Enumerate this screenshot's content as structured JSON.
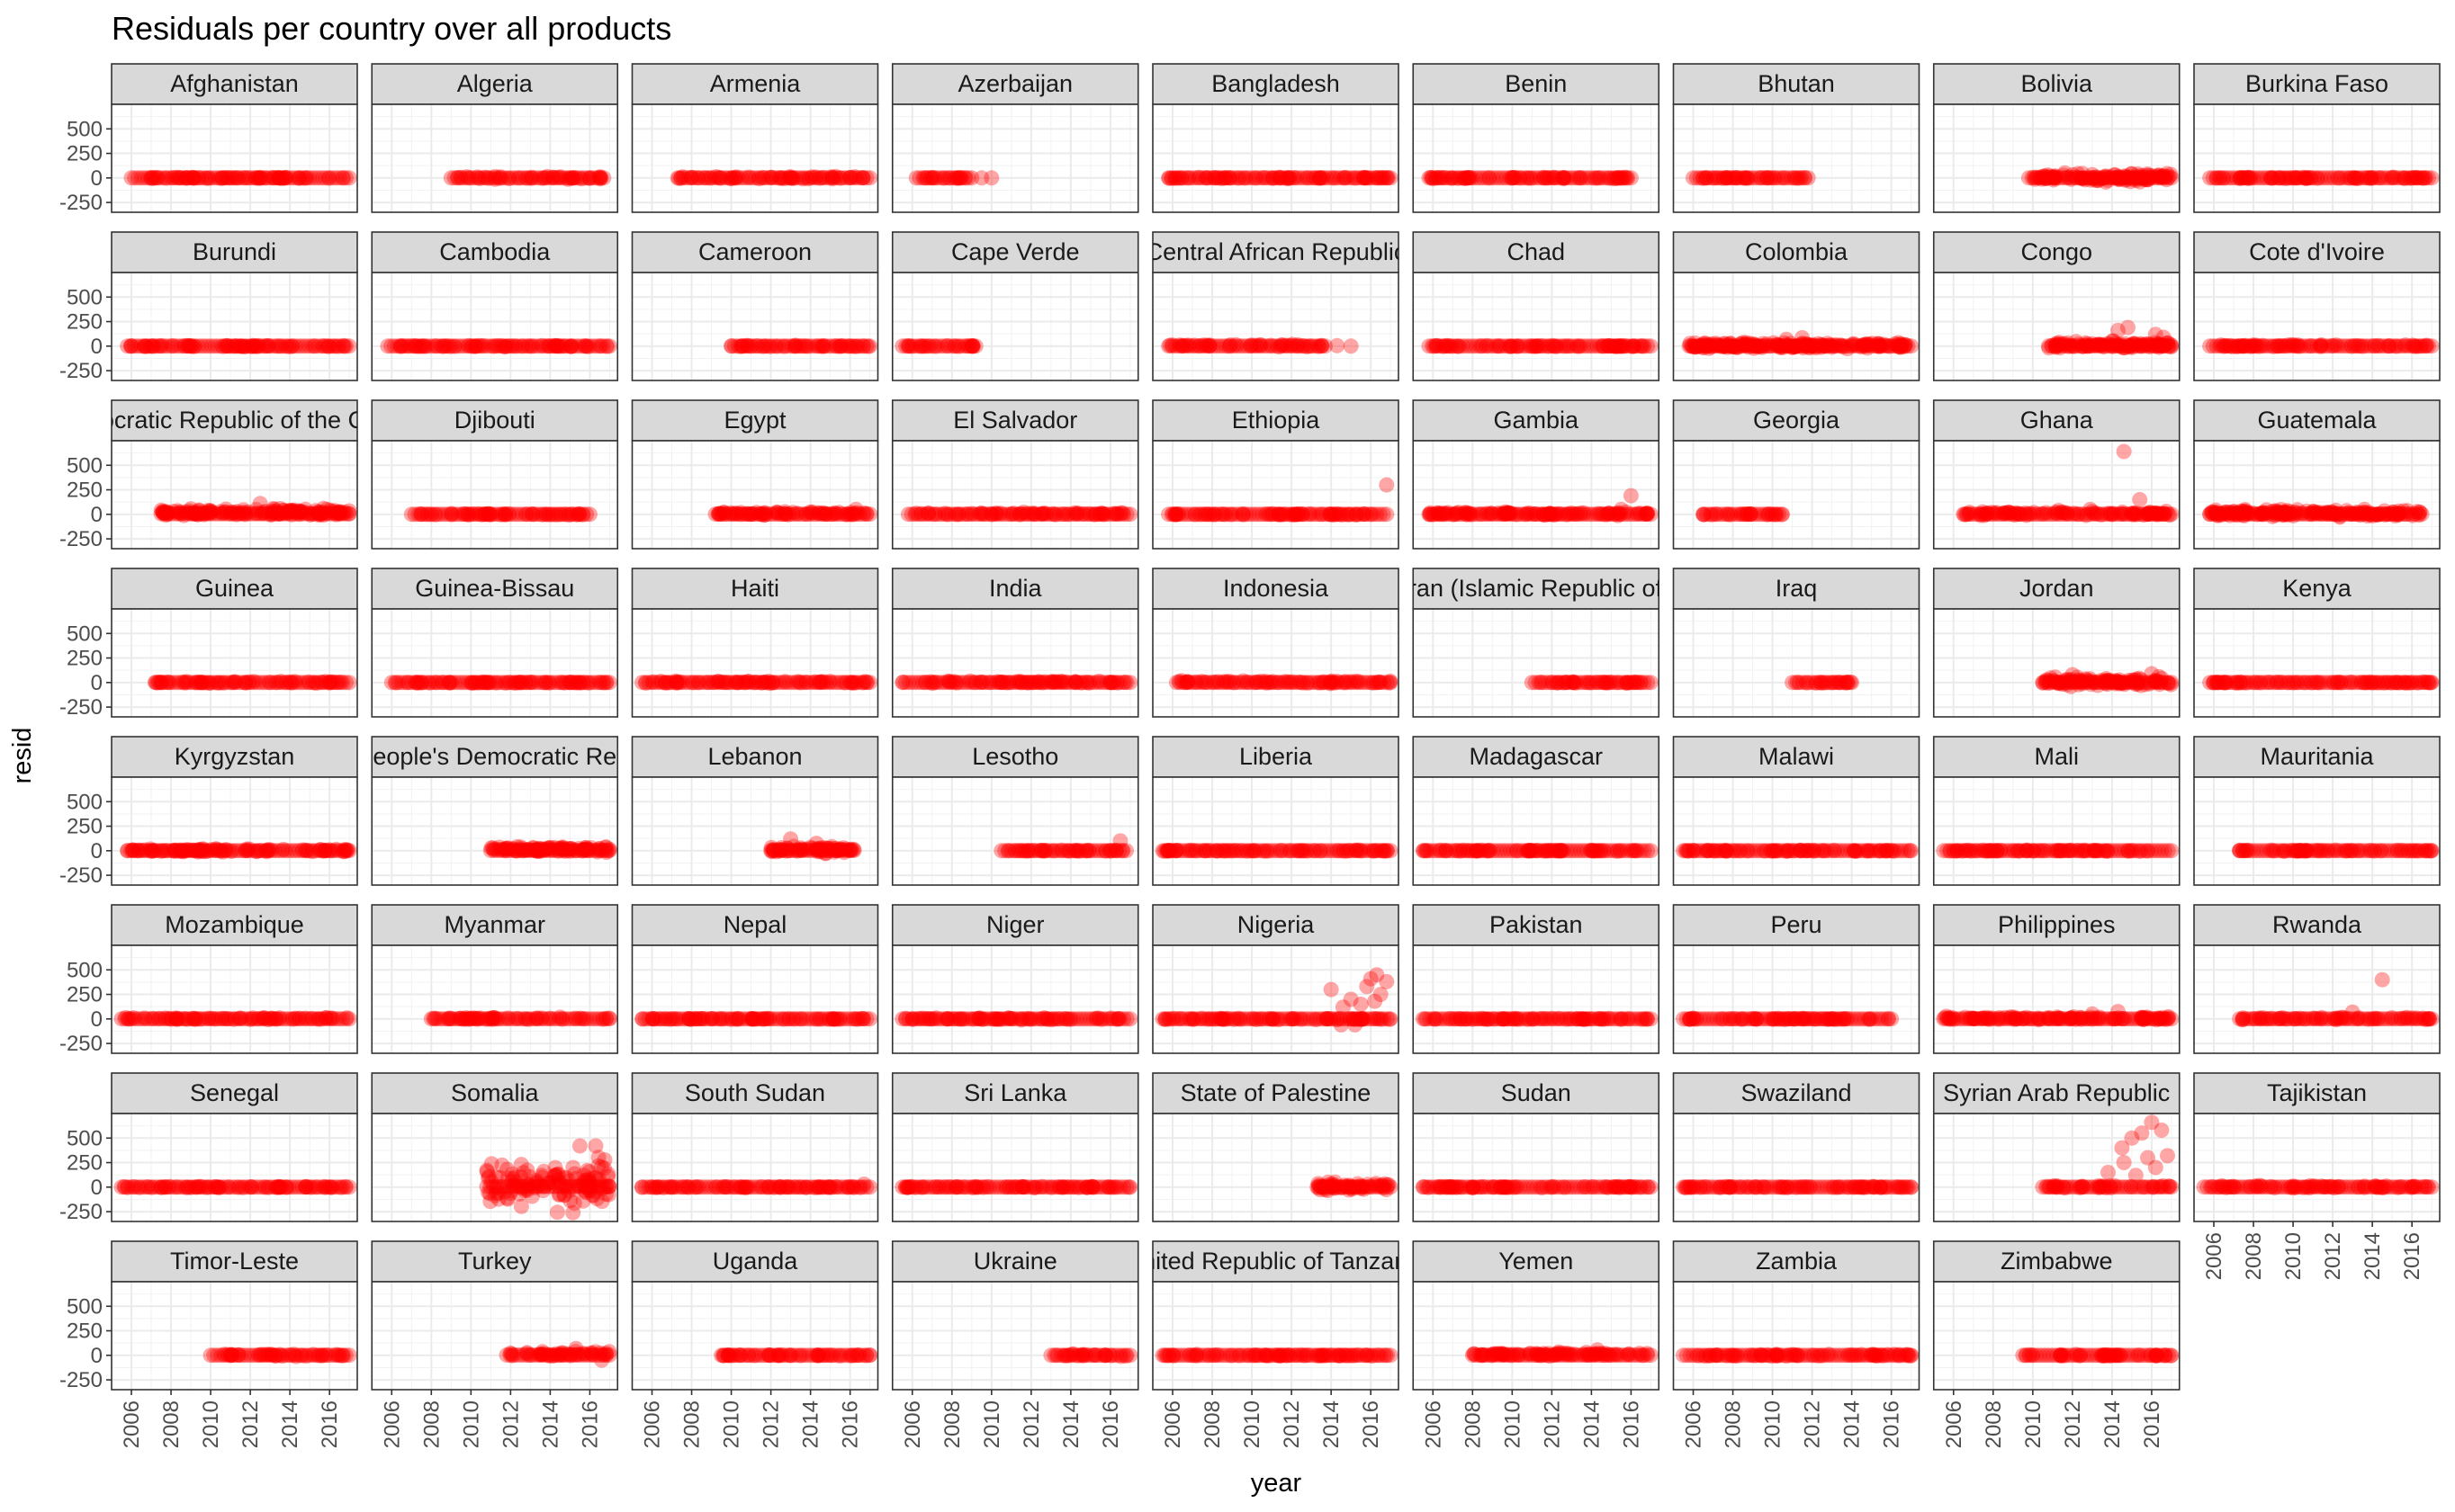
{
  "chart_data": {
    "type": "scatter",
    "faceted": true,
    "title": "Residuals per country over all products",
    "xlabel": "year",
    "ylabel": "resid",
    "xlim": [
      2005,
      2017.4
    ],
    "ylim": [
      -350,
      750
    ],
    "x_ticks": [
      2006,
      2008,
      2010,
      2012,
      2014,
      2016
    ],
    "y_ticks": [
      -250,
      0,
      250,
      500
    ],
    "x_tick_labels": [
      "2006",
      "2008",
      "2010",
      "2012",
      "2014",
      "2016"
    ],
    "y_tick_labels": [
      "-250",
      "0",
      "250",
      "500"
    ],
    "grid": true,
    "facet_columns": 9,
    "point_color": "#ff0000",
    "point_alpha": 0.35,
    "panels": [
      {
        "name": "Afghanistan",
        "x_range": [
          2006.0,
          2017.0
        ],
        "spread": [
          -8,
          8
        ],
        "outliers": []
      },
      {
        "name": "Algeria",
        "x_range": [
          2009.0,
          2016.7
        ],
        "spread": [
          -20,
          20
        ],
        "outliers": []
      },
      {
        "name": "Armenia",
        "x_range": [
          2007.3,
          2017.0
        ],
        "spread": [
          -15,
          22
        ],
        "outliers": []
      },
      {
        "name": "Azerbaijan",
        "x_range": [
          2006.2,
          2009.0
        ],
        "spread": [
          -5,
          5
        ],
        "outliers": [
          [
            2009.5,
            0
          ],
          [
            2010.0,
            0
          ]
        ]
      },
      {
        "name": "Bangladesh",
        "x_range": [
          2005.8,
          2017.0
        ],
        "spread": [
          -8,
          8
        ],
        "outliers": []
      },
      {
        "name": "Benin",
        "x_range": [
          2005.8,
          2016.0
        ],
        "spread": [
          -10,
          10
        ],
        "outliers": []
      },
      {
        "name": "Bhutan",
        "x_range": [
          2006.0,
          2011.8
        ],
        "spread": [
          -5,
          5
        ],
        "outliers": []
      },
      {
        "name": "Bolivia",
        "x_range": [
          2009.8,
          2017.0
        ],
        "spread": [
          -50,
          65
        ],
        "outliers": []
      },
      {
        "name": "Burkina Faso",
        "x_range": [
          2005.8,
          2017.0
        ],
        "spread": [
          -8,
          8
        ],
        "outliers": []
      },
      {
        "name": "Burundi",
        "x_range": [
          2005.8,
          2017.0
        ],
        "spread": [
          -8,
          8
        ],
        "outliers": []
      },
      {
        "name": "Cambodia",
        "x_range": [
          2005.8,
          2017.0
        ],
        "spread": [
          -8,
          8
        ],
        "outliers": []
      },
      {
        "name": "Cameroon",
        "x_range": [
          2010.0,
          2017.0
        ],
        "spread": [
          -10,
          10
        ],
        "outliers": []
      },
      {
        "name": "Cape Verde",
        "x_range": [
          2005.5,
          2009.2
        ],
        "spread": [
          -6,
          6
        ],
        "outliers": []
      },
      {
        "name": "Central African Republic",
        "x_range": [
          2005.8,
          2013.7
        ],
        "spread": [
          -15,
          22
        ],
        "outliers": [
          [
            2014.3,
            5
          ],
          [
            2015.0,
            0
          ]
        ]
      },
      {
        "name": "Chad",
        "x_range": [
          2005.8,
          2017.0
        ],
        "spread": [
          -8,
          8
        ],
        "outliers": []
      },
      {
        "name": "Colombia",
        "x_range": [
          2005.8,
          2017.0
        ],
        "spread": [
          -40,
          50
        ],
        "outliers": [
          [
            2011.5,
            85
          ],
          [
            2010.7,
            70
          ]
        ]
      },
      {
        "name": "Congo",
        "x_range": [
          2010.8,
          2017.0
        ],
        "spread": [
          -40,
          60
        ],
        "outliers": [
          [
            2014.3,
            160
          ],
          [
            2014.8,
            190
          ],
          [
            2016.2,
            120
          ],
          [
            2016.6,
            90
          ]
        ]
      },
      {
        "name": "Cote d'Ivoire",
        "x_range": [
          2005.8,
          2017.0
        ],
        "spread": [
          -12,
          20
        ],
        "outliers": []
      },
      {
        "name": "Democratic Republic of the Congo",
        "x_range": [
          2007.5,
          2017.0
        ],
        "spread": [
          -25,
          70
        ],
        "outliers": [
          [
            2012.5,
            110
          ],
          [
            2015.7,
            60
          ]
        ]
      },
      {
        "name": "Djibouti",
        "x_range": [
          2007.0,
          2016.0
        ],
        "spread": [
          -10,
          10
        ],
        "outliers": []
      },
      {
        "name": "Egypt",
        "x_range": [
          2009.2,
          2017.0
        ],
        "spread": [
          -18,
          35
        ],
        "outliers": [
          [
            2016.3,
            50
          ]
        ]
      },
      {
        "name": "El Salvador",
        "x_range": [
          2005.8,
          2017.0
        ],
        "spread": [
          -12,
          25
        ],
        "outliers": []
      },
      {
        "name": "Ethiopia",
        "x_range": [
          2005.8,
          2016.8
        ],
        "spread": [
          -8,
          8
        ],
        "outliers": [
          [
            2016.8,
            300
          ]
        ]
      },
      {
        "name": "Gambia",
        "x_range": [
          2005.8,
          2017.0
        ],
        "spread": [
          -15,
          30
        ],
        "outliers": [
          [
            2016.0,
            190
          ],
          [
            2015.5,
            50
          ]
        ]
      },
      {
        "name": "Georgia",
        "x_range": [
          2006.5,
          2010.5
        ],
        "spread": [
          -8,
          8
        ],
        "outliers": []
      },
      {
        "name": "Ghana",
        "x_range": [
          2006.5,
          2017.0
        ],
        "spread": [
          -18,
          35
        ],
        "outliers": [
          [
            2014.6,
            640
          ],
          [
            2015.4,
            150
          ],
          [
            2011.3,
            40
          ],
          [
            2012.9,
            50
          ]
        ]
      },
      {
        "name": "Guatemala",
        "x_range": [
          2005.8,
          2016.5
        ],
        "spread": [
          -35,
          60
        ],
        "outliers": []
      },
      {
        "name": "Guinea",
        "x_range": [
          2007.2,
          2017.0
        ],
        "spread": [
          -10,
          15
        ],
        "outliers": []
      },
      {
        "name": "Guinea-Bissau",
        "x_range": [
          2006.0,
          2017.0
        ],
        "spread": [
          -8,
          8
        ],
        "outliers": []
      },
      {
        "name": "Haiti",
        "x_range": [
          2005.5,
          2017.0
        ],
        "spread": [
          -12,
          20
        ],
        "outliers": []
      },
      {
        "name": "India",
        "x_range": [
          2005.5,
          2017.0
        ],
        "spread": [
          -12,
          20
        ],
        "outliers": []
      },
      {
        "name": "Indonesia",
        "x_range": [
          2006.2,
          2017.0
        ],
        "spread": [
          -15,
          22
        ],
        "outliers": []
      },
      {
        "name": "Iran  (Islamic Republic of)",
        "x_range": [
          2011.0,
          2017.0
        ],
        "spread": [
          -8,
          8
        ],
        "outliers": []
      },
      {
        "name": "Iraq",
        "x_range": [
          2011.0,
          2014.0
        ],
        "spread": [
          -8,
          8
        ],
        "outliers": []
      },
      {
        "name": "Jordan",
        "x_range": [
          2010.5,
          2017.0
        ],
        "spread": [
          -55,
          70
        ],
        "outliers": [
          [
            2012.0,
            80
          ],
          [
            2016.0,
            90
          ]
        ]
      },
      {
        "name": "Kenya",
        "x_range": [
          2005.8,
          2017.0
        ],
        "spread": [
          -8,
          8
        ],
        "outliers": []
      },
      {
        "name": "Kyrgyzstan",
        "x_range": [
          2005.8,
          2017.0
        ],
        "spread": [
          -18,
          25
        ],
        "outliers": []
      },
      {
        "name": "Lao People's Democratic Republic",
        "x_range": [
          2011.0,
          2017.0
        ],
        "spread": [
          -30,
          60
        ],
        "outliers": []
      },
      {
        "name": "Lebanon",
        "x_range": [
          2012.0,
          2016.2
        ],
        "spread": [
          -35,
          60
        ],
        "outliers": [
          [
            2013.0,
            120
          ],
          [
            2014.3,
            75
          ]
        ]
      },
      {
        "name": "Lesotho",
        "x_range": [
          2010.5,
          2016.8
        ],
        "spread": [
          -8,
          8
        ],
        "outliers": [
          [
            2016.5,
            100
          ]
        ]
      },
      {
        "name": "Liberia",
        "x_range": [
          2005.5,
          2017.0
        ],
        "spread": [
          -8,
          8
        ],
        "outliers": []
      },
      {
        "name": "Madagascar",
        "x_range": [
          2005.5,
          2017.0
        ],
        "spread": [
          -8,
          8
        ],
        "outliers": []
      },
      {
        "name": "Malawi",
        "x_range": [
          2005.5,
          2017.0
        ],
        "spread": [
          -8,
          8
        ],
        "outliers": []
      },
      {
        "name": "Mali",
        "x_range": [
          2005.5,
          2017.0
        ],
        "spread": [
          -8,
          8
        ],
        "outliers": []
      },
      {
        "name": "Mauritania",
        "x_range": [
          2007.3,
          2017.0
        ],
        "spread": [
          -8,
          8
        ],
        "outliers": []
      },
      {
        "name": "Mozambique",
        "x_range": [
          2005.5,
          2017.0
        ],
        "spread": [
          -12,
          20
        ],
        "outliers": []
      },
      {
        "name": "Myanmar",
        "x_range": [
          2008.0,
          2017.0
        ],
        "spread": [
          -12,
          20
        ],
        "outliers": []
      },
      {
        "name": "Nepal",
        "x_range": [
          2005.5,
          2017.0
        ],
        "spread": [
          -8,
          8
        ],
        "outliers": []
      },
      {
        "name": "Niger",
        "x_range": [
          2005.5,
          2017.0
        ],
        "spread": [
          -12,
          15
        ],
        "outliers": []
      },
      {
        "name": "Nigeria",
        "x_range": [
          2005.5,
          2017.0
        ],
        "spread": [
          -10,
          10
        ],
        "outliers": [
          [
            2014.0,
            300
          ],
          [
            2015.8,
            330
          ],
          [
            2016.0,
            410
          ],
          [
            2016.3,
            450
          ],
          [
            2016.8,
            380
          ],
          [
            2016.5,
            250
          ],
          [
            2015.0,
            200
          ],
          [
            2015.5,
            150
          ],
          [
            2014.6,
            120
          ],
          [
            2016.2,
            180
          ],
          [
            2014.5,
            -60
          ],
          [
            2015.2,
            -60
          ]
        ]
      },
      {
        "name": "Pakistan",
        "x_range": [
          2005.5,
          2017.0
        ],
        "spread": [
          -8,
          8
        ],
        "outliers": []
      },
      {
        "name": "Peru",
        "x_range": [
          2005.5,
          2016.0
        ],
        "spread": [
          -8,
          8
        ],
        "outliers": []
      },
      {
        "name": "Philippines",
        "x_range": [
          2005.5,
          2017.0
        ],
        "spread": [
          -15,
          30
        ],
        "outliers": [
          [
            2014.3,
            75
          ],
          [
            2013.0,
            50
          ]
        ]
      },
      {
        "name": "Rwanda",
        "x_range": [
          2007.3,
          2017.0
        ],
        "spread": [
          -12,
          20
        ],
        "outliers": [
          [
            2014.5,
            400
          ],
          [
            2013.0,
            70
          ]
        ]
      },
      {
        "name": "Senegal",
        "x_range": [
          2005.5,
          2017.0
        ],
        "spread": [
          -8,
          8
        ],
        "outliers": []
      },
      {
        "name": "Somalia",
        "x_range": [
          2010.8,
          2017.0
        ],
        "spread": [
          -280,
          340
        ],
        "outliers": [
          [
            2015.5,
            420
          ],
          [
            2016.3,
            420
          ]
        ]
      },
      {
        "name": "South Sudan",
        "x_range": [
          2005.5,
          2017.0
        ],
        "spread": [
          -8,
          8
        ],
        "outliers": [
          [
            2016.7,
            30
          ]
        ]
      },
      {
        "name": "Sri Lanka",
        "x_range": [
          2005.5,
          2017.0
        ],
        "spread": [
          -8,
          8
        ],
        "outliers": []
      },
      {
        "name": "State of Palestine",
        "x_range": [
          2013.3,
          2017.0
        ],
        "spread": [
          -55,
          70
        ],
        "outliers": []
      },
      {
        "name": "Sudan",
        "x_range": [
          2005.5,
          2017.0
        ],
        "spread": [
          -8,
          8
        ],
        "outliers": []
      },
      {
        "name": "Swaziland",
        "x_range": [
          2005.5,
          2017.0
        ],
        "spread": [
          -8,
          8
        ],
        "outliers": []
      },
      {
        "name": "Syrian Arab Republic",
        "x_range": [
          2010.5,
          2017.0
        ],
        "spread": [
          -15,
          25
        ],
        "outliers": [
          [
            2015.0,
            500
          ],
          [
            2015.5,
            550
          ],
          [
            2016.0,
            660
          ],
          [
            2016.5,
            580
          ],
          [
            2014.5,
            400
          ],
          [
            2016.8,
            320
          ],
          [
            2015.8,
            300
          ],
          [
            2014.6,
            250
          ],
          [
            2013.8,
            150
          ],
          [
            2016.2,
            200
          ],
          [
            2015.2,
            120
          ]
        ]
      },
      {
        "name": "Tajikistan",
        "x_range": [
          2005.5,
          2017.0
        ],
        "spread": [
          -15,
          22
        ],
        "outliers": []
      },
      {
        "name": "Timor-Leste",
        "x_range": [
          2010.0,
          2017.0
        ],
        "spread": [
          -15,
          22
        ],
        "outliers": []
      },
      {
        "name": "Turkey",
        "x_range": [
          2011.8,
          2017.0
        ],
        "spread": [
          -25,
          55
        ],
        "outliers": [
          [
            2015.3,
            70
          ],
          [
            2016.6,
            -50
          ]
        ]
      },
      {
        "name": "Uganda",
        "x_range": [
          2009.5,
          2017.0
        ],
        "spread": [
          -8,
          8
        ],
        "outliers": []
      },
      {
        "name": "Ukraine",
        "x_range": [
          2013.0,
          2017.0
        ],
        "spread": [
          -18,
          22
        ],
        "outliers": []
      },
      {
        "name": "United Republic of Tanzania",
        "x_range": [
          2005.5,
          2017.0
        ],
        "spread": [
          -10,
          10
        ],
        "outliers": []
      },
      {
        "name": "Yemen",
        "x_range": [
          2008.0,
          2017.0
        ],
        "spread": [
          -15,
          35
        ],
        "outliers": [
          [
            2014.3,
            55
          ]
        ]
      },
      {
        "name": "Zambia",
        "x_range": [
          2005.5,
          2017.0
        ],
        "spread": [
          -12,
          15
        ],
        "outliers": []
      },
      {
        "name": "Zimbabwe",
        "x_range": [
          2009.5,
          2017.0
        ],
        "spread": [
          -10,
          12
        ],
        "outliers": []
      }
    ]
  }
}
